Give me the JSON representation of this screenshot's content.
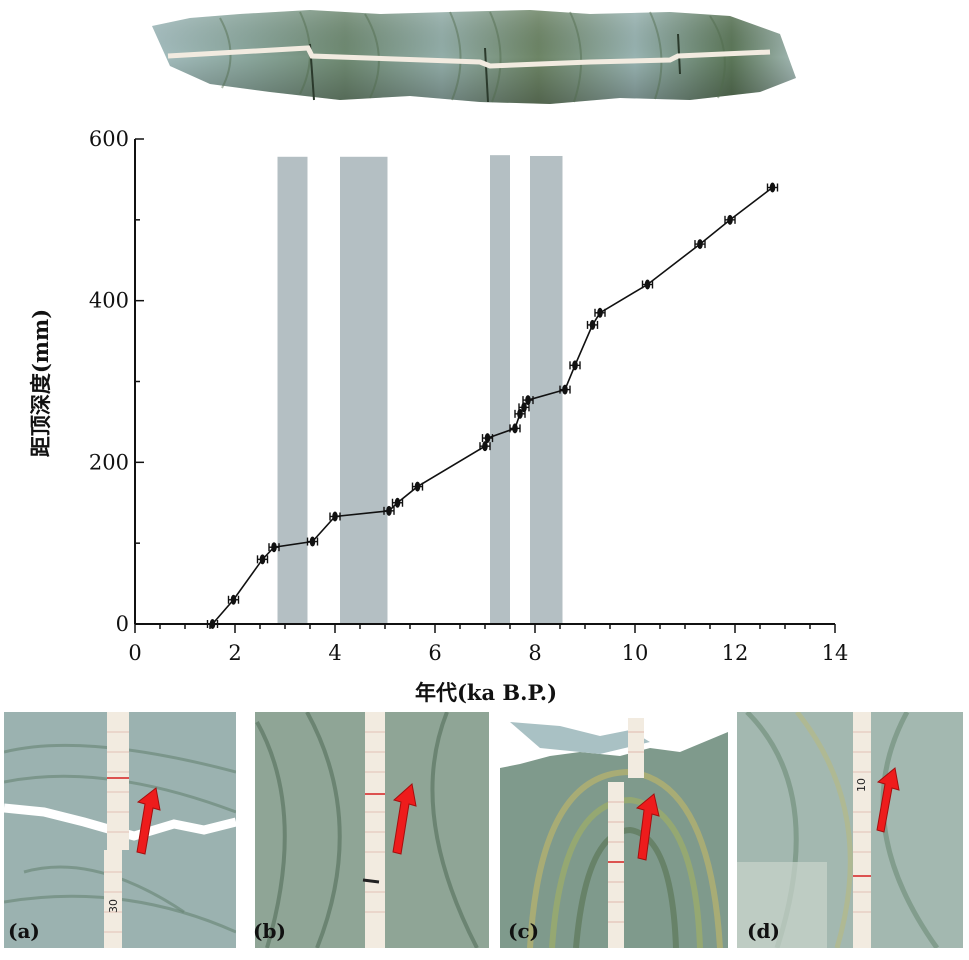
{
  "chart_data": {
    "type": "line",
    "title": "",
    "xlabel": "年代(ka B.P.)",
    "ylabel": "距顶深度(mm)",
    "xlim": [
      0,
      14
    ],
    "ylim": [
      0,
      600
    ],
    "x_ticks": [
      0,
      2,
      4,
      6,
      8,
      10,
      12,
      14
    ],
    "y_ticks": [
      0,
      200,
      400,
      600
    ],
    "grid": false,
    "legend": "none",
    "line_color": "#111111",
    "band_color": "#b4bfc3",
    "shaded_bands": [
      {
        "x_start": 2.85,
        "x_end": 3.45,
        "y_top": 578
      },
      {
        "x_start": 4.1,
        "x_end": 5.05,
        "y_top": 578
      },
      {
        "x_start": 7.1,
        "x_end": 7.5,
        "y_top": 580
      },
      {
        "x_start": 7.9,
        "x_end": 8.55,
        "y_top": 579
      }
    ],
    "series": [
      {
        "points": [
          {
            "x": 1.55,
            "y": 0
          },
          {
            "x": 1.97,
            "y": 30
          },
          {
            "x": 2.55,
            "y": 80
          },
          {
            "x": 2.78,
            "y": 95
          },
          {
            "x": 3.55,
            "y": 102
          },
          {
            "x": 4.0,
            "y": 133
          },
          {
            "x": 5.08,
            "y": 140
          },
          {
            "x": 5.25,
            "y": 150
          },
          {
            "x": 5.65,
            "y": 170
          },
          {
            "x": 7.0,
            "y": 220
          },
          {
            "x": 7.05,
            "y": 230
          },
          {
            "x": 7.6,
            "y": 242
          },
          {
            "x": 7.7,
            "y": 260
          },
          {
            "x": 7.78,
            "y": 268
          },
          {
            "x": 7.86,
            "y": 277
          },
          {
            "x": 8.6,
            "y": 290
          },
          {
            "x": 8.8,
            "y": 320
          },
          {
            "x": 9.15,
            "y": 370
          },
          {
            "x": 9.3,
            "y": 385
          },
          {
            "x": 10.25,
            "y": 420
          },
          {
            "x": 11.3,
            "y": 470
          },
          {
            "x": 11.9,
            "y": 500
          },
          {
            "x": 12.75,
            "y": 540
          }
        ]
      }
    ]
  },
  "panels": [
    {
      "label": "(a)",
      "ruler_mark": "30"
    },
    {
      "label": "(b)"
    },
    {
      "label": "(c)"
    },
    {
      "label": "(d)",
      "ruler_mark": "10"
    }
  ],
  "colors": {
    "core_dark": "#5f7a6a",
    "core_light": "#a9c1c4",
    "core_olive": "#7b8a52",
    "ruler": "#f2ebe0",
    "arrow": "#ee1c1c"
  }
}
